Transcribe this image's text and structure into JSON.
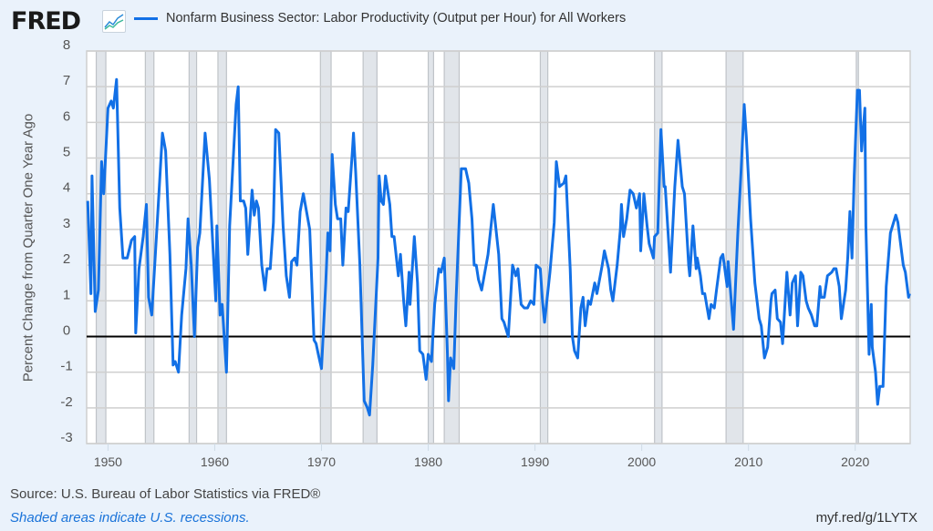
{
  "header": {
    "logo_text": "FRED",
    "logo_icon": "line-chart-icon",
    "series_label": "Nonfarm Business Sector: Labor Productivity (Output per Hour) for All Workers"
  },
  "footer": {
    "source": "Source: U.S. Bureau of Labor Statistics via FRED®",
    "recession_note": "Shaded areas indicate U.S. recessions.",
    "short_url": "myf.red/g/1LYTX"
  },
  "colors": {
    "line": "#1270e6",
    "background": "#eaf2fb",
    "recession": "#e1e5ea",
    "zero_line": "#000000"
  },
  "chart_data": {
    "type": "line",
    "title": "Nonfarm Business Sector: Labor Productivity (Output per Hour) for All Workers",
    "xlabel": "",
    "ylabel": "Percent Change from Quarter One Year Ago",
    "xlim": [
      1948.0,
      2025.15
    ],
    "ylim": [
      -3,
      8
    ],
    "yticks": [
      -3,
      -2,
      -1,
      0,
      1,
      2,
      3,
      4,
      5,
      6,
      7,
      8
    ],
    "xticks": [
      1950,
      1960,
      1970,
      1980,
      1990,
      2000,
      2010,
      2020
    ],
    "grid": "horizontal",
    "legend_position": "top",
    "recessions": [
      [
        1948.9,
        1949.8
      ],
      [
        1953.5,
        1954.3
      ],
      [
        1957.6,
        1958.3
      ],
      [
        1960.3,
        1961.1
      ],
      [
        1969.9,
        1970.9
      ],
      [
        1973.9,
        1975.2
      ],
      [
        1980.0,
        1980.5
      ],
      [
        1981.5,
        1982.9
      ],
      [
        1990.5,
        1991.2
      ],
      [
        2001.2,
        2001.9
      ],
      [
        2007.9,
        2009.5
      ],
      [
        2020.1,
        2020.3
      ]
    ],
    "series": [
      {
        "name": "Nonfarm Business Sector: Labor Productivity (Output per Hour) for All Workers",
        "points": [
          [
            1948.1,
            3.8
          ],
          [
            1948.4,
            1.2
          ],
          [
            1948.5,
            4.5
          ],
          [
            1948.8,
            0.7
          ],
          [
            1949.1,
            1.3
          ],
          [
            1949.4,
            4.9
          ],
          [
            1949.6,
            4.0
          ],
          [
            1950.0,
            6.4
          ],
          [
            1950.3,
            6.6
          ],
          [
            1950.5,
            6.4
          ],
          [
            1950.8,
            7.2
          ],
          [
            1951.1,
            3.6
          ],
          [
            1951.4,
            2.2
          ],
          [
            1951.8,
            2.2
          ],
          [
            1952.2,
            2.7
          ],
          [
            1952.5,
            2.8
          ],
          [
            1952.6,
            0.1
          ],
          [
            1952.9,
            1.9
          ],
          [
            1953.3,
            2.8
          ],
          [
            1953.6,
            3.7
          ],
          [
            1953.8,
            1.1
          ],
          [
            1954.1,
            0.6
          ],
          [
            1954.6,
            3.1
          ],
          [
            1955.1,
            5.7
          ],
          [
            1955.4,
            5.2
          ],
          [
            1955.8,
            2.3
          ],
          [
            1956.1,
            -0.8
          ],
          [
            1956.3,
            -0.7
          ],
          [
            1956.6,
            -1.0
          ],
          [
            1956.9,
            0.6
          ],
          [
            1957.3,
            1.9
          ],
          [
            1957.5,
            3.3
          ],
          [
            1957.8,
            2.0
          ],
          [
            1958.1,
            0.0
          ],
          [
            1958.4,
            2.5
          ],
          [
            1958.6,
            2.9
          ],
          [
            1959.1,
            5.7
          ],
          [
            1959.5,
            4.4
          ],
          [
            1960.1,
            1.0
          ],
          [
            1960.2,
            3.1
          ],
          [
            1960.5,
            0.6
          ],
          [
            1960.7,
            0.9
          ],
          [
            1961.1,
            -1.0
          ],
          [
            1961.4,
            3.1
          ],
          [
            1962.0,
            6.5
          ],
          [
            1962.2,
            7.0
          ],
          [
            1962.4,
            3.8
          ],
          [
            1962.7,
            3.8
          ],
          [
            1962.9,
            3.6
          ],
          [
            1963.1,
            2.3
          ],
          [
            1963.5,
            4.1
          ],
          [
            1963.7,
            3.4
          ],
          [
            1963.9,
            3.8
          ],
          [
            1964.1,
            3.6
          ],
          [
            1964.4,
            2.0
          ],
          [
            1964.7,
            1.3
          ],
          [
            1964.9,
            1.9
          ],
          [
            1965.2,
            1.9
          ],
          [
            1965.5,
            3.2
          ],
          [
            1965.7,
            5.8
          ],
          [
            1966.0,
            5.7
          ],
          [
            1966.4,
            3.1
          ],
          [
            1966.7,
            1.7
          ],
          [
            1967.0,
            1.1
          ],
          [
            1967.2,
            2.1
          ],
          [
            1967.5,
            2.2
          ],
          [
            1967.7,
            2.0
          ],
          [
            1968.0,
            3.5
          ],
          [
            1968.3,
            4.0
          ],
          [
            1968.6,
            3.5
          ],
          [
            1968.9,
            3.0
          ],
          [
            1969.3,
            -0.1
          ],
          [
            1969.5,
            -0.2
          ],
          [
            1969.7,
            -0.5
          ],
          [
            1970.0,
            -0.9
          ],
          [
            1970.4,
            1.5
          ],
          [
            1970.6,
            2.9
          ],
          [
            1970.8,
            2.4
          ],
          [
            1971.0,
            5.1
          ],
          [
            1971.3,
            3.7
          ],
          [
            1971.5,
            3.3
          ],
          [
            1971.8,
            3.3
          ],
          [
            1972.0,
            2.0
          ],
          [
            1972.3,
            3.6
          ],
          [
            1972.5,
            3.5
          ],
          [
            1972.9,
            5.2
          ],
          [
            1973.0,
            5.7
          ],
          [
            1973.2,
            4.6
          ],
          [
            1973.6,
            2.0
          ],
          [
            1974.0,
            -1.8
          ],
          [
            1974.3,
            -2.0
          ],
          [
            1974.5,
            -2.2
          ],
          [
            1974.8,
            -0.8
          ],
          [
            1975.3,
            2.2
          ],
          [
            1975.4,
            4.5
          ],
          [
            1975.6,
            3.8
          ],
          [
            1975.8,
            3.7
          ],
          [
            1976.0,
            4.5
          ],
          [
            1976.4,
            3.7
          ],
          [
            1976.6,
            2.8
          ],
          [
            1976.8,
            2.8
          ],
          [
            1977.2,
            1.7
          ],
          [
            1977.4,
            2.3
          ],
          [
            1977.7,
            1.0
          ],
          [
            1977.9,
            0.3
          ],
          [
            1978.2,
            1.8
          ],
          [
            1978.3,
            0.9
          ],
          [
            1978.7,
            2.8
          ],
          [
            1979.0,
            1.5
          ],
          [
            1979.2,
            -0.4
          ],
          [
            1979.5,
            -0.5
          ],
          [
            1979.8,
            -1.2
          ],
          [
            1980.0,
            -0.5
          ],
          [
            1980.3,
            -0.7
          ],
          [
            1980.6,
            0.9
          ],
          [
            1981.0,
            1.9
          ],
          [
            1981.2,
            1.8
          ],
          [
            1981.5,
            2.2
          ],
          [
            1981.8,
            -0.5
          ],
          [
            1981.9,
            -1.8
          ],
          [
            1982.1,
            -0.6
          ],
          [
            1982.4,
            -0.9
          ],
          [
            1982.6,
            1.0
          ],
          [
            1983.1,
            4.7
          ],
          [
            1983.5,
            4.7
          ],
          [
            1983.8,
            4.3
          ],
          [
            1984.1,
            3.3
          ],
          [
            1984.3,
            2.0
          ],
          [
            1984.5,
            2.0
          ],
          [
            1984.7,
            1.6
          ],
          [
            1985.0,
            1.3
          ],
          [
            1985.3,
            1.8
          ],
          [
            1985.6,
            2.3
          ],
          [
            1986.1,
            3.7
          ],
          [
            1986.6,
            2.3
          ],
          [
            1986.9,
            0.5
          ],
          [
            1987.1,
            0.4
          ],
          [
            1987.5,
            0.0
          ],
          [
            1987.9,
            2.0
          ],
          [
            1988.2,
            1.7
          ],
          [
            1988.4,
            1.9
          ],
          [
            1988.7,
            0.9
          ],
          [
            1989.0,
            0.8
          ],
          [
            1989.3,
            0.8
          ],
          [
            1989.6,
            1.0
          ],
          [
            1989.9,
            0.9
          ],
          [
            1990.1,
            2.0
          ],
          [
            1990.5,
            1.9
          ],
          [
            1990.7,
            1.0
          ],
          [
            1990.9,
            0.4
          ],
          [
            1991.4,
            1.8
          ],
          [
            1991.8,
            3.2
          ],
          [
            1992.0,
            4.9
          ],
          [
            1992.3,
            4.2
          ],
          [
            1992.7,
            4.3
          ],
          [
            1992.9,
            4.5
          ],
          [
            1993.3,
            1.9
          ],
          [
            1993.5,
            0.0
          ],
          [
            1993.7,
            -0.4
          ],
          [
            1994.0,
            -0.6
          ],
          [
            1994.3,
            0.8
          ],
          [
            1994.5,
            1.1
          ],
          [
            1994.7,
            0.3
          ],
          [
            1995.0,
            1.0
          ],
          [
            1995.2,
            0.9
          ],
          [
            1995.6,
            1.5
          ],
          [
            1995.8,
            1.2
          ],
          [
            1996.3,
            2.0
          ],
          [
            1996.5,
            2.4
          ],
          [
            1996.9,
            1.9
          ],
          [
            1997.1,
            1.3
          ],
          [
            1997.3,
            1.0
          ],
          [
            1997.7,
            2.0
          ],
          [
            1998.0,
            3.0
          ],
          [
            1998.1,
            3.7
          ],
          [
            1998.3,
            2.8
          ],
          [
            1998.6,
            3.3
          ],
          [
            1998.9,
            4.1
          ],
          [
            1999.2,
            4.0
          ],
          [
            1999.5,
            3.6
          ],
          [
            1999.8,
            4.0
          ],
          [
            1999.9,
            2.4
          ],
          [
            2000.2,
            4.0
          ],
          [
            2000.5,
            3.1
          ],
          [
            2000.7,
            2.6
          ],
          [
            2001.1,
            2.2
          ],
          [
            2001.2,
            2.8
          ],
          [
            2001.5,
            2.9
          ],
          [
            2001.8,
            5.8
          ],
          [
            2002.1,
            4.2
          ],
          [
            2002.2,
            4.2
          ],
          [
            2002.7,
            1.8
          ],
          [
            2003.1,
            4.2
          ],
          [
            2003.4,
            5.5
          ],
          [
            2003.8,
            4.2
          ],
          [
            2004.0,
            4.0
          ],
          [
            2004.4,
            2.0
          ],
          [
            2004.5,
            1.7
          ],
          [
            2004.8,
            3.1
          ],
          [
            2005.1,
            1.9
          ],
          [
            2005.2,
            2.2
          ],
          [
            2005.5,
            1.7
          ],
          [
            2005.7,
            1.2
          ],
          [
            2005.9,
            1.2
          ],
          [
            2006.3,
            0.5
          ],
          [
            2006.5,
            0.9
          ],
          [
            2006.8,
            0.8
          ],
          [
            2007.0,
            1.3
          ],
          [
            2007.4,
            2.2
          ],
          [
            2007.6,
            2.3
          ],
          [
            2008.0,
            1.4
          ],
          [
            2008.1,
            2.1
          ],
          [
            2008.6,
            0.2
          ],
          [
            2009.0,
            2.9
          ],
          [
            2009.3,
            4.6
          ],
          [
            2009.6,
            6.5
          ],
          [
            2009.8,
            5.6
          ],
          [
            2010.2,
            3.3
          ],
          [
            2010.6,
            1.5
          ],
          [
            2011.0,
            0.5
          ],
          [
            2011.2,
            0.3
          ],
          [
            2011.5,
            -0.6
          ],
          [
            2011.8,
            -0.3
          ],
          [
            2012.1,
            1.0
          ],
          [
            2012.2,
            1.2
          ],
          [
            2012.5,
            1.3
          ],
          [
            2012.7,
            0.5
          ],
          [
            2013.0,
            0.4
          ],
          [
            2013.2,
            -0.2
          ],
          [
            2013.6,
            1.8
          ],
          [
            2013.9,
            0.6
          ],
          [
            2014.1,
            1.5
          ],
          [
            2014.4,
            1.7
          ],
          [
            2014.6,
            0.3
          ],
          [
            2014.9,
            1.8
          ],
          [
            2015.1,
            1.7
          ],
          [
            2015.4,
            1.0
          ],
          [
            2015.6,
            0.8
          ],
          [
            2015.9,
            0.6
          ],
          [
            2016.2,
            0.3
          ],
          [
            2016.4,
            0.3
          ],
          [
            2016.7,
            1.4
          ],
          [
            2016.8,
            1.1
          ],
          [
            2017.1,
            1.1
          ],
          [
            2017.4,
            1.7
          ],
          [
            2017.8,
            1.8
          ],
          [
            2018.0,
            1.9
          ],
          [
            2018.2,
            1.9
          ],
          [
            2018.5,
            1.4
          ],
          [
            2018.7,
            0.5
          ],
          [
            2019.1,
            1.3
          ],
          [
            2019.3,
            2.2
          ],
          [
            2019.5,
            3.5
          ],
          [
            2019.7,
            2.2
          ],
          [
            2019.9,
            4.5
          ],
          [
            2020.2,
            6.9
          ],
          [
            2020.4,
            6.9
          ],
          [
            2020.6,
            5.2
          ],
          [
            2020.9,
            6.4
          ],
          [
            2021.0,
            3.1
          ],
          [
            2021.3,
            -0.5
          ],
          [
            2021.5,
            0.9
          ],
          [
            2021.6,
            -0.3
          ],
          [
            2021.9,
            -1.0
          ],
          [
            2022.1,
            -1.9
          ],
          [
            2022.3,
            -1.4
          ],
          [
            2022.6,
            -1.4
          ],
          [
            2022.9,
            1.4
          ],
          [
            2023.3,
            2.9
          ],
          [
            2023.8,
            3.4
          ],
          [
            2024.0,
            3.2
          ],
          [
            2024.5,
            2.0
          ],
          [
            2024.7,
            1.8
          ],
          [
            2025.0,
            1.1
          ],
          [
            2025.1,
            1.2
          ]
        ]
      }
    ]
  }
}
